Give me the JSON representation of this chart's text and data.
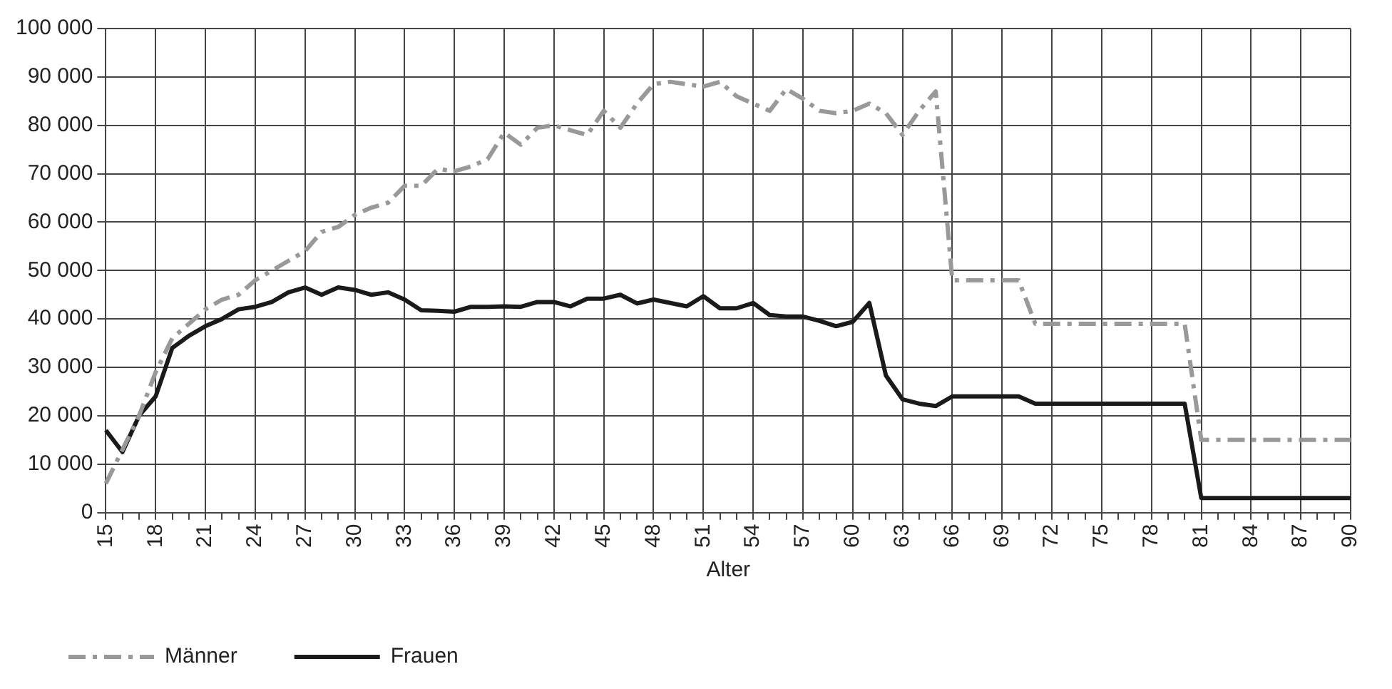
{
  "chart_data": {
    "type": "line",
    "xlabel": "Alter",
    "categories": [
      "15",
      null,
      null,
      "18",
      null,
      null,
      "21",
      null,
      null,
      "24",
      null,
      null,
      "27",
      null,
      null,
      "30",
      null,
      null,
      "33",
      null,
      null,
      "36",
      null,
      null,
      "39",
      null,
      null,
      "42",
      null,
      null,
      "45",
      null,
      null,
      "48",
      null,
      null,
      "51",
      null,
      null,
      "54",
      null,
      null,
      "57",
      null,
      null,
      "60",
      null,
      null,
      "63",
      null,
      null,
      "66",
      null,
      null,
      "69",
      null,
      null,
      "72",
      null,
      null,
      "75",
      null,
      null,
      "78",
      null,
      null,
      "81",
      null,
      null,
      "84",
      null,
      null,
      "87",
      null,
      null,
      "90"
    ],
    "series": [
      {
        "name": "Männer",
        "color": "#999999",
        "line_style": "dashdot",
        "values": [
          6000,
          13000,
          20000,
          29000,
          36000,
          39000,
          42000,
          44000,
          45000,
          48000,
          50000,
          52000,
          54000,
          58000,
          59000,
          61500,
          63000,
          64000,
          67500,
          67500,
          71000,
          70500,
          71500,
          73000,
          78500,
          76000,
          79500,
          80000,
          79000,
          78000,
          83000,
          79500,
          84500,
          88500,
          89000,
          88500,
          88000,
          89000,
          86000,
          84500,
          83000,
          87500,
          85500,
          83000,
          82500,
          83000,
          84500,
          82500,
          78000,
          83000,
          87000,
          48000,
          48000,
          48000,
          48000,
          48000,
          39000,
          39000,
          39000,
          39000,
          39000,
          39000,
          39000,
          39000,
          39000,
          39000,
          15000,
          15000,
          15000,
          15000,
          15000,
          15000,
          15000,
          15000,
          15000,
          15000
        ]
      },
      {
        "name": "Frauen",
        "color": "#1a1a1a",
        "line_style": "solid",
        "values": [
          17000,
          12500,
          20000,
          24000,
          34000,
          36500,
          38500,
          40000,
          42000,
          42500,
          43500,
          45500,
          46500,
          45000,
          46500,
          46000,
          45000,
          45500,
          44000,
          41800,
          41700,
          41500,
          42500,
          42500,
          42600,
          42500,
          43500,
          43500,
          42600,
          44200,
          44200,
          45000,
          43200,
          44000,
          43300,
          42600,
          44700,
          42200,
          42200,
          43300,
          40800,
          40500,
          40500,
          39600,
          38500,
          39400,
          43300,
          28300,
          23400,
          22500,
          22000,
          24000,
          24000,
          24000,
          24000,
          24000,
          22500,
          22500,
          22500,
          22500,
          22500,
          22500,
          22500,
          22500,
          22500,
          22500,
          3000,
          3000,
          3000,
          3000,
          3000,
          3000,
          3000,
          3000,
          3000,
          3000
        ]
      }
    ],
    "ylim": [
      0,
      100000
    ],
    "yticks": [
      {
        "value": 0,
        "label": "0"
      },
      {
        "value": 10000,
        "label": "10 000"
      },
      {
        "value": 20000,
        "label": "20 000"
      },
      {
        "value": 30000,
        "label": "30 000"
      },
      {
        "value": 40000,
        "label": "40 000"
      },
      {
        "value": 50000,
        "label": "50 000"
      },
      {
        "value": 60000,
        "label": "60 000"
      },
      {
        "value": 70000,
        "label": "70 000"
      },
      {
        "value": 80000,
        "label": "80 000"
      },
      {
        "value": 90000,
        "label": "90 000"
      },
      {
        "value": 100000,
        "label": "100 000"
      }
    ],
    "grid": true,
    "legend": "bottom left",
    "marker": "none"
  }
}
